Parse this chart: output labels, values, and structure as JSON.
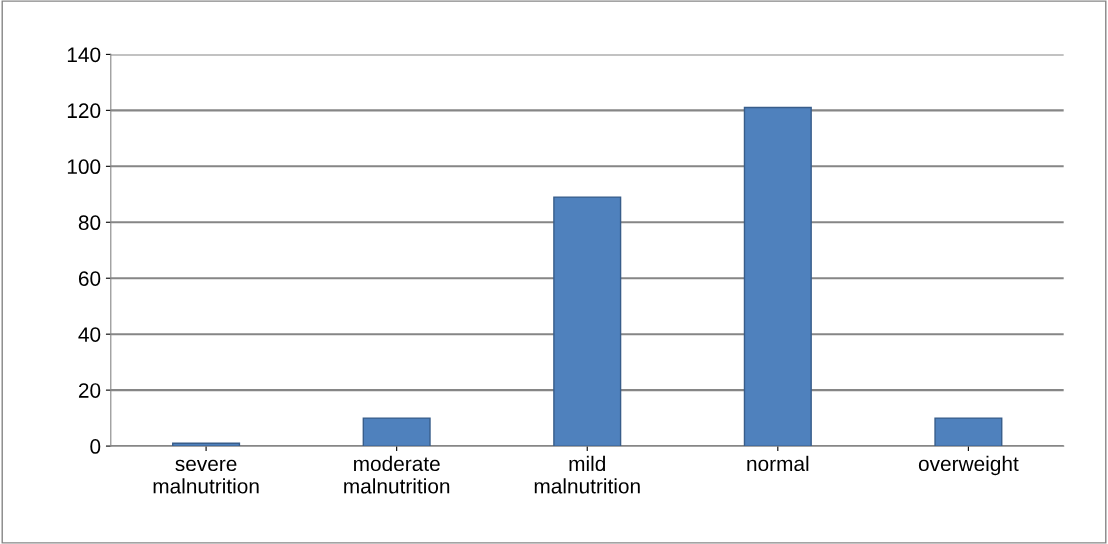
{
  "chart_data": {
    "type": "bar",
    "categories": [
      "severe\nmalnutrition",
      "moderate\nmalnutrition",
      "mild\nmalnutrition",
      "normal",
      "overweight"
    ],
    "values": [
      1,
      10,
      89,
      121,
      10
    ],
    "color": "#4f81bd",
    "ylim": [
      0,
      140
    ],
    "yticks": [
      0,
      20,
      40,
      60,
      80,
      100,
      120,
      140
    ],
    "grid": "y",
    "legend": false
  }
}
